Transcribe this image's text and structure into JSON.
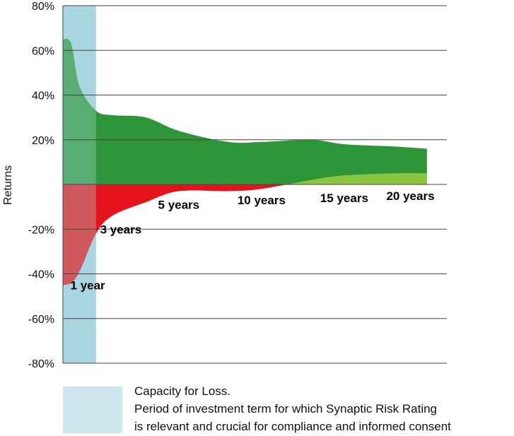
{
  "chart_data": {
    "type": "area",
    "ylabel": "Returns",
    "ylim": [
      -80,
      80
    ],
    "y_ticks": [
      "80%",
      "60%",
      "40%",
      "20%",
      "",
      "-20%",
      "-40%",
      "-60%",
      "-80%"
    ],
    "y_tick_values": [
      80,
      60,
      40,
      20,
      0,
      -20,
      -40,
      -60,
      -80
    ],
    "x": [
      0,
      0.5,
      1,
      2,
      3,
      5,
      7,
      10,
      12,
      15,
      17,
      20,
      22
    ],
    "series": [
      {
        "values": [
          65,
          63,
          44,
          33,
          31,
          30,
          24,
          19,
          19,
          20,
          18,
          17,
          16
        ],
        "color": "#2e9638"
      },
      {
        "values": [
          -45,
          -44,
          -39,
          -22,
          -14,
          -8,
          -3,
          -3,
          -2,
          2,
          4,
          5,
          5
        ],
        "color": "#e3141b"
      }
    ],
    "colors": {
      "gain": "#2e9638",
      "loss": "#e3141b",
      "late_gain": "#8cc540",
      "highlight": "#a9d6e0",
      "grid": "#444444"
    },
    "term_labels": [
      {
        "text": "1 year",
        "x": 1.5,
        "y": -45
      },
      {
        "text": "3 years",
        "x": 3.5,
        "y": -20
      },
      {
        "text": "5 years",
        "x": 7,
        "y": -9
      },
      {
        "text": "10 years",
        "x": 12,
        "y": -7
      },
      {
        "text": "15 years",
        "x": 17,
        "y": -6
      },
      {
        "text": "20 years",
        "x": 21,
        "y": -5
      }
    ],
    "highlight_range": [
      0,
      2
    ],
    "grid": true
  },
  "legend": {
    "line1": "Capacity for Loss.",
    "line2": "Period of investment term for which Synaptic Risk Rating",
    "line3": "is relevant and crucial for compliance and informed consent"
  }
}
